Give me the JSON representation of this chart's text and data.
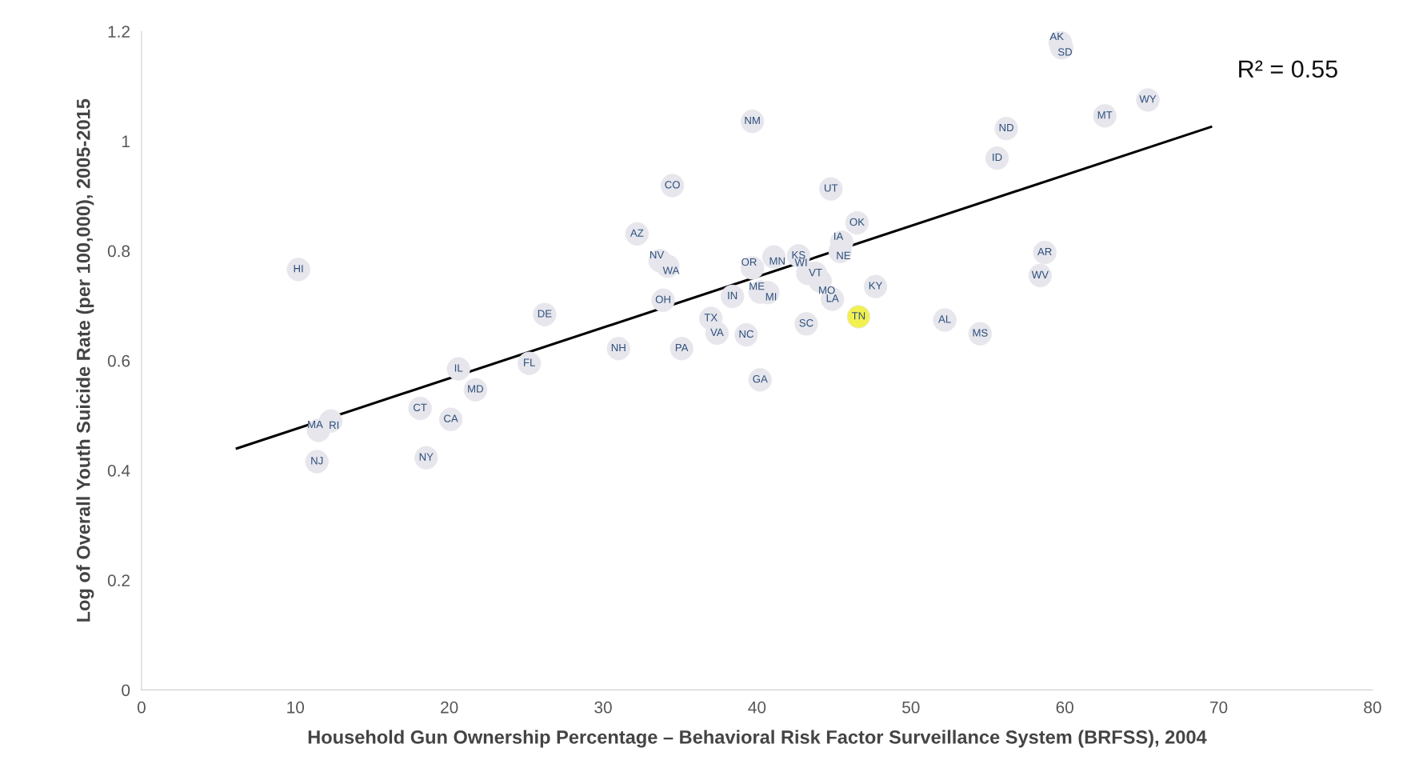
{
  "chart_data": {
    "type": "scatter",
    "xlabel": "Household Gun Ownership Percentage – Behavioral Risk Factor Surveillance System (BRFSS), 2004",
    "ylabel": "Log of Overall Youth Suicide Rate (per 100,000), 2005-2015",
    "annotations": [
      "R² = 0.55"
    ],
    "xlim": [
      0,
      80
    ],
    "xticks": [
      0,
      10,
      20,
      30,
      40,
      50,
      60,
      70,
      80
    ],
    "ylim": [
      0,
      1.2
    ],
    "yticks": [
      0,
      0.2,
      0.4,
      0.6,
      0.8,
      1,
      1.2
    ],
    "grid": false,
    "legend": false,
    "marker": "circle",
    "series": [
      {
        "color": "#e6e6ec",
        "x": [
          10.2,
          11.5,
          12.3,
          11.4,
          18.1,
          18.5,
          20.1,
          20.6,
          21.7,
          25.2,
          26.2,
          31.0,
          32.2,
          33.7,
          34.2,
          34.5,
          33.9,
          35.1,
          37.0,
          37.4,
          38.4,
          39.3,
          39.7,
          39.7,
          40.2,
          40.7,
          40.2,
          41.1,
          42.7,
          43.3,
          43.8,
          43.2,
          44.1,
          44.9,
          44.8,
          45.5,
          45.4,
          46.5,
          46.6,
          47.7,
          52.2,
          54.5,
          55.6,
          56.2,
          58.4,
          58.7,
          59.7,
          59.8,
          62.6,
          65.4
        ],
        "values": [
          0.766,
          0.473,
          0.49,
          0.416,
          0.513,
          0.423,
          0.493,
          0.585,
          0.547,
          0.595,
          0.684,
          0.622,
          0.831,
          0.782,
          0.772,
          0.919,
          0.71,
          0.622,
          0.677,
          0.65,
          0.717,
          0.647,
          1.036,
          0.769,
          0.725,
          0.724,
          0.565,
          0.789,
          0.791,
          0.759,
          0.759,
          0.667,
          0.745,
          0.712,
          0.913,
          0.816,
          0.799,
          0.851,
          0.68,
          0.735,
          0.674,
          0.649,
          0.969,
          1.023,
          0.755,
          0.797,
          1.18,
          1.17,
          1.046,
          1.075
        ],
        "value_labels": [
          "HI",
          "MA",
          "RI",
          "NJ",
          "CT",
          "NY",
          "CA",
          "IL",
          "MD",
          "FL",
          "DE",
          "NH",
          "AZ",
          "NV",
          "WA",
          "CO",
          "OH",
          "PA",
          "TX",
          "VA",
          "IN",
          "NC",
          "NM",
          "OR",
          "ME",
          "MI",
          "GA",
          "MN",
          "KS",
          "WI",
          "VT",
          "SC",
          "MO",
          "LA",
          "UT",
          "IA",
          "NE",
          "OK",
          "TN",
          "KY",
          "AL",
          "MS",
          "ID",
          "ND",
          "WV",
          "AR",
          "AK",
          "SD",
          "MT",
          "WY"
        ],
        "colors": [
          "#e6e6ec",
          "#e6e6ec",
          "#e6e6ec",
          "#e6e6ec",
          "#e6e6ec",
          "#e6e6ec",
          "#e6e6ec",
          "#e6e6ec",
          "#e6e6ec",
          "#e6e6ec",
          "#e6e6ec",
          "#e6e6ec",
          "#e6e6ec",
          "#e6e6ec",
          "#e6e6ec",
          "#e6e6ec",
          "#e6e6ec",
          "#e6e6ec",
          "#e6e6ec",
          "#e6e6ec",
          "#e6e6ec",
          "#e6e6ec",
          "#e6e6ec",
          "#e6e6ec",
          "#e6e6ec",
          "#e6e6ec",
          "#e6e6ec",
          "#e6e6ec",
          "#e6e6ec",
          "#e6e6ec",
          "#e6e6ec",
          "#e6e6ec",
          "#e6e6ec",
          "#e6e6ec",
          "#e6e6ec",
          "#e6e6ec",
          "#e6e6ec",
          "#e6e6ec",
          "#f2f050",
          "#e6e6ec",
          "#e6e6ec",
          "#e6e6ec",
          "#e6e6ec",
          "#e6e6ec",
          "#e6e6ec",
          "#e6e6ec",
          "#e6e6ec",
          "#e6e6ec",
          "#e6e6ec",
          "#e6e6ec"
        ]
      },
      {
        "type": "line",
        "color": "#000000",
        "marker": "none",
        "x": [
          6.2,
          69.5
        ],
        "values": [
          0.44,
          1.026
        ]
      }
    ]
  }
}
